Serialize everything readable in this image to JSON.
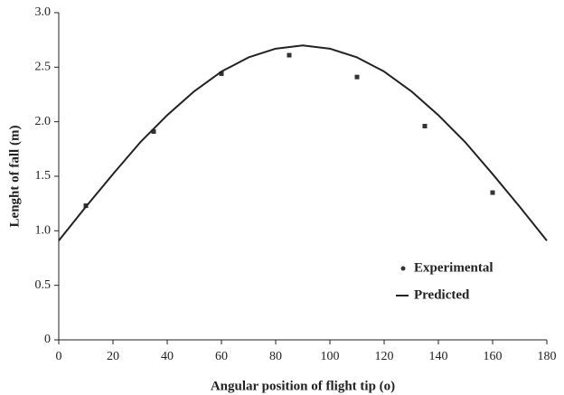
{
  "chart_data": {
    "type": "scatter",
    "x_label": "Angular position of flight tip (o)",
    "y_label": "Lenght of fall (m)",
    "xlim": [
      0,
      180
    ],
    "xticks": [
      0,
      20,
      40,
      60,
      80,
      100,
      120,
      140,
      160,
      180
    ],
    "ylim": [
      0,
      3
    ],
    "yticks": [
      0,
      0.5,
      {
        "value": 1,
        "label": "1.0"
      },
      1.5,
      {
        "value": 2,
        "label": "2.0"
      },
      2.5,
      {
        "value": 3,
        "label": "3.0"
      }
    ],
    "grid": false,
    "legend": "lower right",
    "series": [
      {
        "name": "Experimental",
        "style": "markers",
        "color": "#333333",
        "x": [
          10,
          35,
          60,
          85,
          110,
          135,
          160
        ],
        "values": [
          1.23,
          1.91,
          2.44,
          2.61,
          2.41,
          1.96,
          1.35
        ]
      },
      {
        "name": "Predicted",
        "style": "line",
        "color": "#222222",
        "x": [
          0,
          10,
          20,
          30,
          40,
          50,
          60,
          70,
          80,
          90,
          100,
          110,
          120,
          130,
          140,
          150,
          160,
          170,
          180
        ],
        "values": [
          0.91,
          1.22,
          1.52,
          1.81,
          2.06,
          2.28,
          2.46,
          2.59,
          2.67,
          2.7,
          2.67,
          2.59,
          2.46,
          2.28,
          2.06,
          1.81,
          1.52,
          1.22,
          0.91
        ]
      }
    ]
  }
}
